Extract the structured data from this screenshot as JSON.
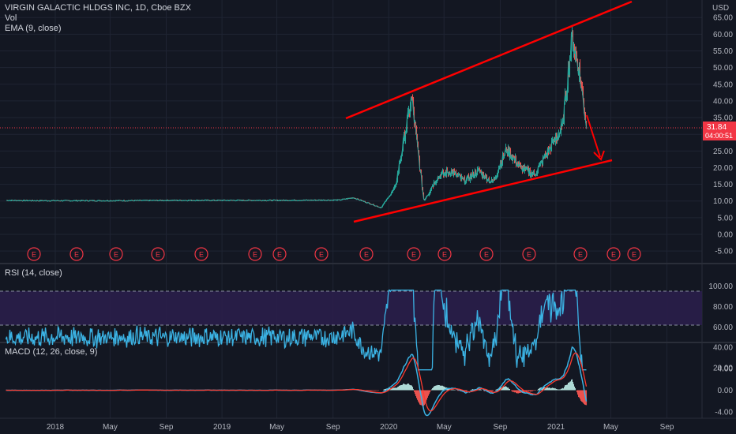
{
  "header": {
    "symbol_line": "VIRGIN GALACTIC HLDGS INC, 1D, Cboe BZX",
    "vol_label": "Vol",
    "ema_label": "EMA (9, close)"
  },
  "price_axis": {
    "currency": "USD",
    "ticks": [
      "65.00",
      "60.00",
      "55.00",
      "50.00",
      "45.00",
      "40.00",
      "35.00",
      "30.00",
      "25.00",
      "20.00",
      "15.00",
      "10.00",
      "5.00",
      "0.00",
      "-5.00"
    ],
    "last_price": "31.84",
    "countdown": "04:00:51",
    "last_price_color": "#f23645"
  },
  "rsi": {
    "label": "RSI (14, close)",
    "ticks": [
      "100.00",
      "80.00",
      "60.00",
      "40.00",
      "20.00"
    ],
    "upper_band": 70,
    "lower_band": 30
  },
  "macd": {
    "label": "MACD (12, 26, close, 9)",
    "ticks": [
      "4.00",
      "0.00",
      "-4.00"
    ]
  },
  "time_axis": {
    "labels": [
      "2018",
      "May",
      "Sep",
      "2019",
      "May",
      "Sep",
      "2020",
      "May",
      "Sep",
      "2021",
      "May",
      "Sep"
    ]
  },
  "earnings": {
    "marker": "E",
    "count": 16
  },
  "colors": {
    "background": "#131722",
    "grid": "#1f2433",
    "up": "#26a69a",
    "down": "#ef5350",
    "trendline": "#ff0000",
    "rsi_line": "#3bb3e4",
    "rsi_band_fill": "#2a1e4a",
    "macd_line": "#3bb3e4",
    "signal_line": "#ff3b30"
  },
  "chart_data": {
    "type": "line",
    "title": "VIRGIN GALACTIC HLDGS INC, 1D, Cboe BZX",
    "ylabel": "USD",
    "ylim": [
      -7,
      68
    ],
    "x": [
      "2017-09",
      "2017-11",
      "2018-01",
      "2018-05",
      "2018-09",
      "2019-01",
      "2019-05",
      "2019-09",
      "2019-10",
      "2019-11",
      "2019-12",
      "2020-01",
      "2020-02-20",
      "2020-03-18",
      "2020-04",
      "2020-05",
      "2020-06",
      "2020-07",
      "2020-08",
      "2020-09",
      "2020-10",
      "2020-11",
      "2020-12",
      "2021-01",
      "2021-02-05",
      "2021-02-20",
      "2021-03",
      "2021-03-10"
    ],
    "series": [
      {
        "values": [
          10.2,
          10.1,
          10.1,
          10.1,
          10.2,
          10.2,
          10.2,
          10.3,
          11.0,
          9.5,
          8.0,
          14.0,
          41.0,
          10.0,
          17.0,
          19.0,
          16.0,
          19.0,
          15.5,
          25.5,
          20.0,
          18.0,
          25.0,
          32.0,
          59.0,
          50.0,
          26.0,
          31.84
        ]
      }
    ]
  }
}
